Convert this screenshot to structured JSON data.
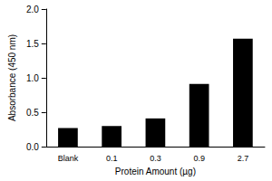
{
  "chart_data": {
    "type": "bar",
    "x_label": "Protein Amount (µg)",
    "y_label": "Absorbance (450 nm)",
    "categories": [
      "Blank",
      "0.1",
      "0.3",
      "0.9",
      "2.7"
    ],
    "values": [
      0.27,
      0.3,
      0.41,
      0.91,
      1.57
    ],
    "color": "#000000",
    "ylim": [
      0,
      2
    ],
    "yticks": [
      {
        "value": 0,
        "label": "0.0"
      },
      0.5,
      {
        "value": 1,
        "label": "1.0"
      },
      1.5,
      {
        "value": 2,
        "label": "2.0"
      }
    ],
    "grid": false
  }
}
